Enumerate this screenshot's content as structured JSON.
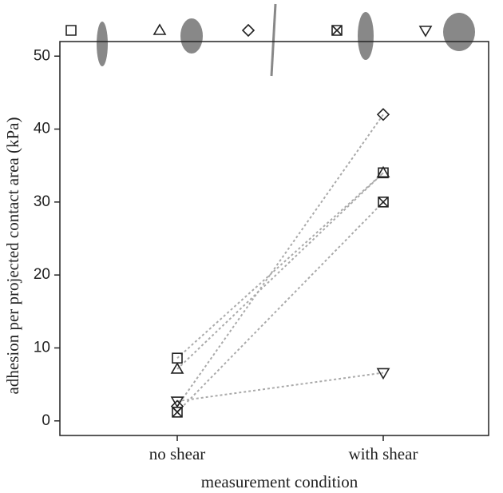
{
  "chart_data": {
    "type": "line",
    "x_label": "measurement condition",
    "y_label": "adhesion per projected contact area (kPa)",
    "categories": [
      "no shear",
      "with shear"
    ],
    "series": [
      {
        "marker": "square",
        "color": "#222222",
        "line_color": "#aaaaaa",
        "values": [
          8.6,
          34
        ]
      },
      {
        "marker": "triangle",
        "color": "#222222",
        "line_color": "#aaaaaa",
        "values": [
          7.1,
          34
        ]
      },
      {
        "marker": "diamond",
        "color": "#222222",
        "line_color": "#aaaaaa",
        "values": [
          2.0,
          42
        ]
      },
      {
        "marker": "crossed-square",
        "color": "#222222",
        "line_color": "#aaaaaa",
        "values": [
          1.2,
          30
        ]
      },
      {
        "marker": "inverted-triangle",
        "color": "#222222",
        "line_color": "#aaaaaa",
        "values": [
          2.7,
          6.6
        ]
      }
    ],
    "ylim": [
      -2,
      52
    ],
    "yticks": [
      0,
      10,
      20,
      30,
      40,
      50
    ],
    "grid": false
  }
}
